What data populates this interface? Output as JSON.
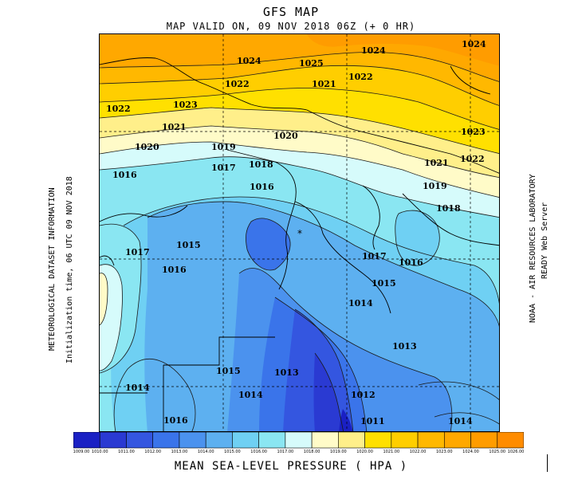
{
  "header": {
    "title": "GFS MAP",
    "subtitle": "MAP VALID ON, 09 NOV 2018 06Z (+  0 HR)"
  },
  "side_text": {
    "left_line1": "METEOROLOGICAL DATASET INFORMATION",
    "left_line2": "Initialization time, 06 UTC 09 NOV 2018",
    "right_line1": "NOAA - AIR RESOURCES LABORATORY",
    "right_line2": "READY Web Server"
  },
  "footer": {
    "caption": "MEAN SEA-LEVEL PRESSURE ( HPA   )"
  },
  "legend": {
    "labels": [
      "1009.00",
      "1010.00",
      "1011.00",
      "1012.00",
      "1013.00",
      "1014.00",
      "1015.00",
      "1016.00",
      "1017.00",
      "1018.00",
      "1019.00",
      "1020.00",
      "1021.00",
      "1022.00",
      "1023.00",
      "1024.00",
      "1025.00",
      "1026.00"
    ],
    "colors": [
      "#1a20c4",
      "#2a3ad2",
      "#3456e0",
      "#3a74ea",
      "#4b92ee",
      "#5db0f0",
      "#6fd0f3",
      "#8ae6f2",
      "#d6fbfb",
      "#fffbc8",
      "#ffef8a",
      "#ffe000",
      "#ffce00",
      "#ffb800",
      "#ffa800",
      "#ff9c00",
      "#ff8c00"
    ]
  },
  "contour_labels": [
    {
      "text": "1024"
    },
    {
      "text": "1025"
    },
    {
      "text": "1024"
    },
    {
      "text": "1024"
    },
    {
      "text": "1022"
    },
    {
      "text": "1021"
    },
    {
      "text": "1022"
    },
    {
      "text": "1022"
    },
    {
      "text": "1023"
    },
    {
      "text": "1021"
    },
    {
      "text": "1020"
    },
    {
      "text": "1020"
    },
    {
      "text": "1023"
    },
    {
      "text": "1022"
    },
    {
      "text": "1019"
    },
    {
      "text": "1018"
    },
    {
      "text": "1016"
    },
    {
      "text": "1017"
    },
    {
      "text": "1021"
    },
    {
      "text": "1016"
    },
    {
      "text": "1019"
    },
    {
      "text": "1018"
    },
    {
      "text": "1015"
    },
    {
      "text": "1017"
    },
    {
      "text": "1017"
    },
    {
      "text": "1016"
    },
    {
      "text": "1016"
    },
    {
      "text": "1015"
    },
    {
      "text": "1014"
    },
    {
      "text": "1013"
    },
    {
      "text": "1015"
    },
    {
      "text": "1013"
    },
    {
      "text": "1014"
    },
    {
      "text": "1014"
    },
    {
      "text": "1012"
    },
    {
      "text": "1016"
    },
    {
      "text": "1011"
    },
    {
      "text": "1014"
    }
  ]
}
